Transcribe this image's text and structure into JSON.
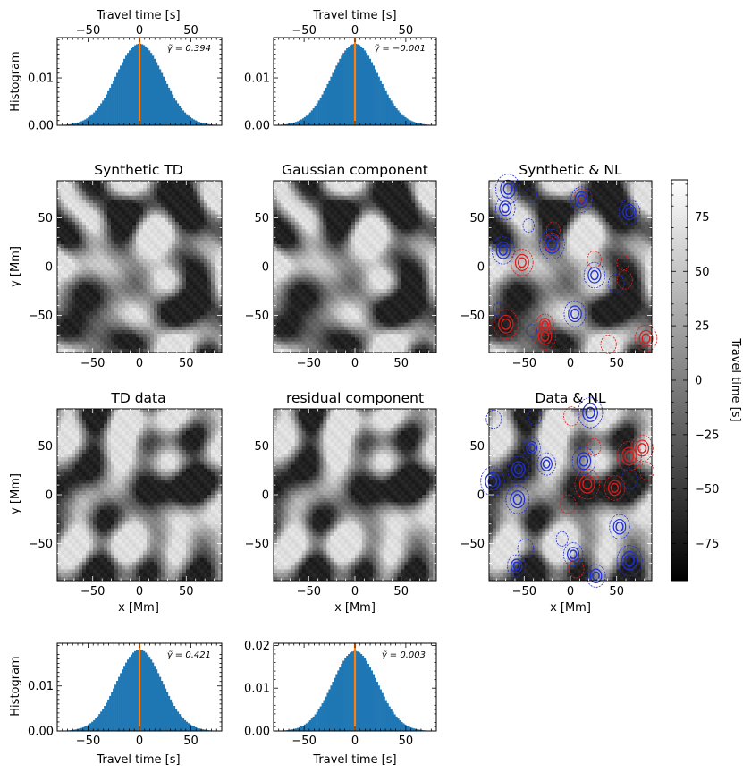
{
  "chart_data": [
    {
      "id": "hist_top_left",
      "type": "bar",
      "xlabel_top": "Travel time [s]",
      "ylabel": "Histogram",
      "x_ticks": [
        -50,
        0,
        50
      ],
      "y_ticks": [
        "0.00",
        "0.01"
      ],
      "ylim": [
        0,
        0.0185
      ],
      "xlim": [
        -80,
        80
      ],
      "annotation": "γ̃ = 0.394",
      "mean_line": 0,
      "sigma": 23,
      "peak": 0.0172
    },
    {
      "id": "hist_top_right",
      "type": "bar",
      "xlabel_top": "Travel time [s]",
      "x_ticks": [
        -50,
        0,
        50
      ],
      "y_ticks": [
        "0.00",
        "0.01"
      ],
      "ylim": [
        0,
        0.0185
      ],
      "xlim": [
        -80,
        80
      ],
      "annotation": "γ̃ = −0.001",
      "mean_line": 0,
      "sigma": 23,
      "peak": 0.0172
    },
    {
      "id": "map_synthetic_td",
      "type": "heatmap",
      "title": "Synthetic TD",
      "ylabel": "y [Mm]",
      "x_ticks": [
        -50,
        0,
        50
      ],
      "y_ticks": [
        -50,
        0,
        50
      ],
      "seed": 11
    },
    {
      "id": "map_gaussian",
      "type": "heatmap",
      "title": "Gaussian component",
      "x_ticks": [
        -50,
        0,
        50
      ],
      "y_ticks": [
        -50,
        0,
        50
      ],
      "seed": 11
    },
    {
      "id": "map_synthetic_nl",
      "type": "heatmap",
      "title": "Synthetic & NL",
      "x_ticks": [
        -50,
        0,
        50
      ],
      "y_ticks": [
        -50,
        0,
        50
      ],
      "seed": 11,
      "contours": true
    },
    {
      "id": "map_td_data",
      "type": "heatmap",
      "title": "TD data",
      "xlabel": "x [Mm]",
      "ylabel": "y [Mm]",
      "x_ticks": [
        -50,
        0,
        50
      ],
      "y_ticks": [
        -50,
        0,
        50
      ],
      "seed": 29
    },
    {
      "id": "map_residual",
      "type": "heatmap",
      "title": "residual component",
      "xlabel": "x [Mm]",
      "x_ticks": [
        -50,
        0,
        50
      ],
      "y_ticks": [
        -50,
        0,
        50
      ],
      "seed": 29
    },
    {
      "id": "map_data_nl",
      "type": "heatmap",
      "title": "Data & NL",
      "xlabel": "x [Mm]",
      "x_ticks": [
        -50,
        0,
        50
      ],
      "y_ticks": [
        -50,
        0,
        50
      ],
      "seed": 29,
      "contours": true
    },
    {
      "id": "colorbar",
      "type": "colorbar",
      "label": "Travel time [s]",
      "ticks": [
        75,
        50,
        25,
        0,
        -25,
        -50,
        -75
      ],
      "range": [
        -92,
        92
      ]
    },
    {
      "id": "hist_bottom_left",
      "type": "bar",
      "xlabel": "Travel time [s]",
      "ylabel": "Histogram",
      "x_ticks": [
        -50,
        0,
        50
      ],
      "y_ticks": [
        "0.00",
        "0.01"
      ],
      "ylim": [
        0,
        0.0195
      ],
      "xlim": [
        -80,
        80
      ],
      "annotation": "γ̃ = 0.421",
      "mean_line": 0,
      "sigma": 22,
      "peak": 0.0181
    },
    {
      "id": "hist_bottom_right",
      "type": "bar",
      "xlabel": "Travel time [s]",
      "x_ticks": [
        -50,
        0,
        50
      ],
      "y_ticks": [
        "0.00",
        "0.01",
        "0.02"
      ],
      "ylim": [
        0,
        0.0205
      ],
      "xlim": [
        -80,
        80
      ],
      "annotation": "γ̃ = 0.003",
      "mean_line": 0,
      "sigma": 22,
      "peak": 0.0187
    }
  ],
  "colors": {
    "bar": "#1f77b4",
    "mean_line": "#ff7f0e",
    "contour_pos": "#e01b1b",
    "contour_neg": "#1f2fd6"
  }
}
